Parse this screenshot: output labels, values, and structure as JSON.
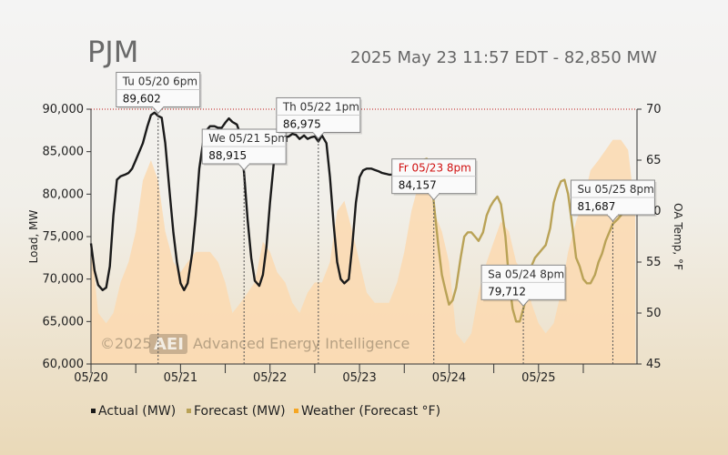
{
  "header": {
    "title": "PJM",
    "subtitle": "2025 May 23 11:57 EDT - 82,850 MW"
  },
  "watermark": {
    "copyright": "©2025",
    "logo": "AEI",
    "company": "Advanced Energy Intelligence"
  },
  "colors": {
    "actual": "#1a1a1a",
    "forecast": "#b9a256",
    "weather": "#fbd9b0",
    "weather_legend": "#f5a623",
    "highlight_red": "#d01010"
  },
  "chart_data": {
    "type": "line",
    "ylabel": "Load, MW",
    "y2label": "OA Temp, °F",
    "ylim": [
      60000,
      90000
    ],
    "y2lim": [
      45,
      70
    ],
    "yticks": [
      "60,000",
      "65,000",
      "70,000",
      "75,000",
      "80,000",
      "85,000",
      "90,000"
    ],
    "y2ticks": [
      "45",
      "50",
      "55",
      "60",
      "65",
      "70"
    ],
    "xticks": [
      "05/20",
      "05/21",
      "05/22",
      "05/23",
      "05/24",
      "05/25"
    ],
    "xlim_days": [
      0,
      6.1
    ],
    "grid": false,
    "legend_position": "bottom",
    "series": [
      {
        "name": "Actual (MW)",
        "axis": "left",
        "x": [
          0.0,
          0.04,
          0.08,
          0.13,
          0.17,
          0.21,
          0.25,
          0.29,
          0.33,
          0.38,
          0.42,
          0.46,
          0.5,
          0.54,
          0.58,
          0.63,
          0.67,
          0.71,
          0.75,
          0.79,
          0.83,
          0.88,
          0.92,
          0.96,
          1.0,
          1.04,
          1.08,
          1.13,
          1.17,
          1.21,
          1.25,
          1.29,
          1.33,
          1.38,
          1.42,
          1.46,
          1.5,
          1.54,
          1.58,
          1.63,
          1.67,
          1.71,
          1.75,
          1.79,
          1.83,
          1.88,
          1.92,
          1.96,
          2.0,
          2.04,
          2.08,
          2.13,
          2.17,
          2.21,
          2.25,
          2.29,
          2.33,
          2.38,
          2.42,
          2.46,
          2.5,
          2.54,
          2.58,
          2.63,
          2.67,
          2.71,
          2.75,
          2.79,
          2.83,
          2.88,
          2.92,
          2.96,
          3.0,
          3.04,
          3.08,
          3.13,
          3.17,
          3.21,
          3.25,
          3.29,
          3.33,
          3.38,
          3.42,
          3.46,
          3.5
        ],
        "y": [
          74200,
          71000,
          69300,
          68700,
          69000,
          71500,
          77500,
          81700,
          82100,
          82300,
          82500,
          83000,
          84000,
          85000,
          86000,
          88000,
          89300,
          89602,
          89200,
          89000,
          86000,
          80000,
          75500,
          72000,
          69500,
          68700,
          69500,
          73000,
          77500,
          83000,
          86000,
          87500,
          88000,
          88000,
          87800,
          87800,
          88400,
          88915,
          88500,
          88200,
          87000,
          82500,
          77000,
          72500,
          69800,
          69200,
          70500,
          73800,
          79000,
          83500,
          85800,
          86500,
          86700,
          86800,
          87100,
          86975,
          86500,
          86900,
          86500,
          86700,
          86800,
          86200,
          86900,
          86000,
          82000,
          76500,
          72000,
          70000,
          69500,
          70000,
          74000,
          79000,
          82000,
          82800,
          83000,
          83000,
          82850,
          82700,
          82500,
          82400,
          82300,
          82300,
          82300,
          82500,
          82800
        ]
      },
      {
        "name": "Forecast (MW)",
        "axis": "left",
        "x": [
          3.5,
          3.54,
          3.58,
          3.63,
          3.67,
          3.71,
          3.75,
          3.79,
          3.83,
          3.88,
          3.92,
          3.96,
          4.0,
          4.04,
          4.08,
          4.13,
          4.17,
          4.21,
          4.25,
          4.29,
          4.33,
          4.38,
          4.42,
          4.46,
          4.5,
          4.54,
          4.58,
          4.63,
          4.67,
          4.71,
          4.75,
          4.79,
          4.83,
          4.88,
          4.92,
          4.96,
          5.0,
          5.04,
          5.08,
          5.13,
          5.17,
          5.21,
          5.25,
          5.29,
          5.33,
          5.38,
          5.42,
          5.46,
          5.5,
          5.54,
          5.58,
          5.63,
          5.67,
          5.71,
          5.75,
          5.79,
          5.83,
          5.88,
          5.92,
          5.96,
          6.0,
          6.04
        ],
        "y": [
          82800,
          83000,
          83000,
          83200,
          83300,
          84000,
          84157,
          83000,
          79000,
          74000,
          70500,
          68700,
          67000,
          67500,
          69000,
          72500,
          75000,
          75500,
          75500,
          75000,
          74500,
          75500,
          77500,
          78500,
          79200,
          79712,
          78800,
          75000,
          70000,
          66500,
          65000,
          65000,
          66500,
          68500,
          71500,
          72500,
          73000,
          73500,
          74000,
          76000,
          79000,
          80500,
          81500,
          81687,
          80000,
          76000,
          72500,
          71500,
          70000,
          69500,
          69500,
          70500,
          72000,
          73000,
          74500,
          75500,
          76500,
          77000,
          77500,
          78000,
          78500,
          79000
        ]
      },
      {
        "name": "Weather (Forecast °F)",
        "axis": "right",
        "x": [
          0.0,
          0.08,
          0.17,
          0.25,
          0.33,
          0.42,
          0.5,
          0.58,
          0.67,
          0.75,
          0.83,
          0.92,
          1.0,
          1.08,
          1.17,
          1.25,
          1.33,
          1.42,
          1.5,
          1.58,
          1.67,
          1.75,
          1.83,
          1.92,
          2.0,
          2.08,
          2.17,
          2.25,
          2.33,
          2.42,
          2.5,
          2.58,
          2.67,
          2.75,
          2.83,
          2.92,
          3.0,
          3.08,
          3.17,
          3.25,
          3.33,
          3.42,
          3.5,
          3.58,
          3.67,
          3.75,
          3.83,
          3.92,
          4.0,
          4.08,
          4.17,
          4.25,
          4.33,
          4.42,
          4.5,
          4.58,
          4.67,
          4.75,
          4.83,
          4.92,
          5.0,
          5.08,
          5.17,
          5.25,
          5.33,
          5.42,
          5.5,
          5.58,
          5.67,
          5.75,
          5.83,
          5.92,
          6.0,
          6.08
        ],
        "y": [
          57,
          50,
          49,
          50,
          53,
          55,
          58,
          63,
          65,
          63,
          58,
          55,
          54,
          55,
          56,
          56,
          56,
          55,
          53,
          50,
          51,
          52,
          53,
          57,
          56,
          54,
          53,
          51,
          50,
          52,
          53,
          53,
          55,
          60,
          61,
          58,
          55,
          52,
          51,
          51,
          51,
          53,
          56,
          60,
          63,
          64,
          60,
          58,
          55,
          48,
          47,
          48,
          52,
          55,
          57,
          59,
          58,
          55,
          54,
          51,
          49,
          48,
          49,
          52,
          56,
          59,
          61,
          64,
          65,
          66,
          67,
          67,
          66,
          60
        ]
      }
    ],
    "callouts": [
      {
        "label": "Tu 05/20 6pm",
        "value": "89,602",
        "x": 0.75,
        "highlight": false
      },
      {
        "label": "We 05/21 5pm",
        "value": "88,915",
        "x": 1.71,
        "highlight": false
      },
      {
        "label": "Th 05/22 1pm",
        "value": "86,975",
        "x": 2.54,
        "highlight": false
      },
      {
        "label": "Fr 05/23 8pm",
        "value": "84,157",
        "x": 3.83,
        "highlight": true
      },
      {
        "label": "Sa 05/24 8pm",
        "value": "79,712",
        "x": 4.83,
        "highlight": false
      },
      {
        "label": "Su 05/25 8pm",
        "value": "81,687",
        "x": 5.83,
        "highlight": false
      }
    ]
  }
}
